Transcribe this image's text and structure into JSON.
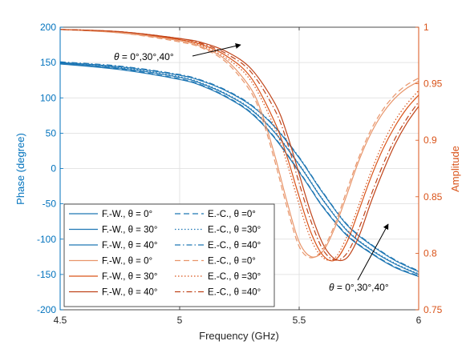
{
  "chart_data": {
    "type": "line",
    "xlabel": "Frequency (GHz)",
    "ylabel_left": "Phase (degree)",
    "ylabel_right": "Amplitude",
    "xlim": [
      4.5,
      6
    ],
    "ylim_left": [
      -200,
      200
    ],
    "ylim_right": [
      0.75,
      1
    ],
    "x_ticks": [
      "4.5",
      "5",
      "5.5",
      "6"
    ],
    "y_left_ticks": [
      "200",
      "150",
      "100",
      "50",
      "0",
      "-50",
      "-100",
      "-150",
      "-200"
    ],
    "y_right_ticks": [
      "1",
      "0.95",
      "0.9",
      "0.85",
      "0.8",
      "0.75"
    ],
    "grid": true,
    "legend_position": "bottom-left",
    "colors": {
      "phase": "#1f77b4",
      "amp_light": "#e8956a",
      "amp_mid": "#d95319",
      "amp_dark": "#c0441a",
      "phase_axis": "#0072bd",
      "amp_axis": "#d95319"
    },
    "annotations": [
      {
        "theta": "θ",
        "text": " = 0°,30°,40°",
        "near": "top-left arrow"
      },
      {
        "theta": "θ",
        "text": " = 0°,30°,40°",
        "near": "bottom-right arrow"
      }
    ],
    "legend": [
      {
        "left": "F.-W., θ = 0°",
        "right": "E.-C., θ =0°"
      },
      {
        "left": "F.-W., θ = 30°",
        "right": "E.-C., θ =30°"
      },
      {
        "left": "F.-W., θ = 40°",
        "right": "E.-C., θ =40°"
      },
      {
        "left": "F.-W., θ = 0°",
        "right": "E.-C., θ =0°"
      },
      {
        "left": "F.-W., θ = 30°",
        "right": "E.-C., θ =30°"
      },
      {
        "left": "F.-W., θ = 40°",
        "right": "E.-C., θ =40°"
      }
    ],
    "series": [
      {
        "axis": "left",
        "method": "F.-W.",
        "theta": 0,
        "style": "solid",
        "color": "phase",
        "x": [
          4.5,
          4.75,
          5.0,
          5.1,
          5.2,
          5.3,
          5.4,
          5.5,
          5.55,
          5.6,
          5.7,
          5.8,
          5.9,
          6.0
        ],
        "y": [
          148,
          140,
          126,
          116,
          100,
          78,
          42,
          -5,
          -30,
          -55,
          -95,
          -120,
          -140,
          -153
        ]
      },
      {
        "axis": "left",
        "method": "F.-W.",
        "theta": 30,
        "style": "solid",
        "color": "phase",
        "x": [
          4.5,
          4.75,
          5.0,
          5.1,
          5.2,
          5.3,
          5.4,
          5.5,
          5.55,
          5.6,
          5.7,
          5.8,
          5.9,
          6.0
        ],
        "y": [
          149,
          142,
          129,
          119,
          104,
          83,
          50,
          5,
          -20,
          -45,
          -88,
          -115,
          -135,
          -150
        ]
      },
      {
        "axis": "left",
        "method": "F.-W.",
        "theta": 40,
        "style": "solid",
        "color": "phase",
        "x": [
          4.5,
          4.75,
          5.0,
          5.1,
          5.2,
          5.3,
          5.4,
          5.5,
          5.55,
          5.6,
          5.7,
          5.8,
          5.9,
          6.0
        ],
        "y": [
          150,
          144,
          132,
          123,
          109,
          89,
          58,
          15,
          -10,
          -35,
          -80,
          -108,
          -130,
          -146
        ]
      },
      {
        "axis": "left",
        "method": "E.-C.",
        "theta": 0,
        "style": "dashed",
        "color": "phase",
        "x": [
          4.5,
          4.75,
          5.0,
          5.1,
          5.2,
          5.3,
          5.4,
          5.5,
          5.55,
          5.6,
          5.7,
          5.8,
          5.9,
          6.0
        ],
        "y": [
          149,
          141,
          127,
          117,
          101,
          79,
          43,
          -4,
          -29,
          -54,
          -94,
          -119,
          -139,
          -152
        ]
      },
      {
        "axis": "left",
        "method": "E.-C.",
        "theta": 30,
        "style": "dotted",
        "color": "phase",
        "x": [
          4.5,
          4.75,
          5.0,
          5.1,
          5.2,
          5.3,
          5.4,
          5.5,
          5.55,
          5.6,
          5.7,
          5.8,
          5.9,
          6.0
        ],
        "y": [
          150,
          143,
          130,
          120,
          105,
          84,
          51,
          6,
          -19,
          -44,
          -87,
          -114,
          -134,
          -149
        ]
      },
      {
        "axis": "left",
        "method": "E.-C.",
        "theta": 40,
        "style": "dashdot",
        "color": "phase",
        "x": [
          4.5,
          4.75,
          5.0,
          5.1,
          5.2,
          5.3,
          5.4,
          5.5,
          5.55,
          5.6,
          5.7,
          5.8,
          5.9,
          6.0
        ],
        "y": [
          151,
          145,
          133,
          124,
          110,
          90,
          59,
          16,
          -9,
          -34,
          -79,
          -107,
          -129,
          -145
        ]
      },
      {
        "axis": "right",
        "method": "F.-W.",
        "theta": 0,
        "style": "solid",
        "color": "amp_light",
        "x": [
          4.5,
          4.75,
          5.0,
          5.1,
          5.2,
          5.3,
          5.35,
          5.4,
          5.45,
          5.5,
          5.55,
          5.6,
          5.65,
          5.7,
          5.75,
          5.8,
          5.85,
          5.9,
          5.95,
          6.0
        ],
        "y": [
          0.998,
          0.995,
          0.988,
          0.982,
          0.97,
          0.945,
          0.92,
          0.885,
          0.845,
          0.81,
          0.797,
          0.802,
          0.823,
          0.852,
          0.882,
          0.906,
          0.924,
          0.937,
          0.946,
          0.952
        ]
      },
      {
        "axis": "right",
        "method": "F.-W.",
        "theta": 30,
        "style": "solid",
        "color": "amp_mid",
        "x": [
          4.5,
          4.75,
          5.0,
          5.1,
          5.2,
          5.3,
          5.4,
          5.45,
          5.5,
          5.55,
          5.6,
          5.65,
          5.7,
          5.75,
          5.8,
          5.85,
          5.9,
          5.95,
          6.0
        ],
        "y": [
          0.998,
          0.996,
          0.989,
          0.984,
          0.974,
          0.955,
          0.915,
          0.885,
          0.85,
          0.818,
          0.798,
          0.794,
          0.81,
          0.838,
          0.867,
          0.892,
          0.912,
          0.928,
          0.94
        ]
      },
      {
        "axis": "right",
        "method": "F.-W.",
        "theta": 40,
        "style": "solid",
        "color": "amp_dark",
        "x": [
          4.5,
          4.75,
          5.0,
          5.1,
          5.2,
          5.3,
          5.4,
          5.45,
          5.5,
          5.55,
          5.6,
          5.65,
          5.7,
          5.75,
          5.8,
          5.85,
          5.9,
          5.95,
          6.0
        ],
        "y": [
          0.998,
          0.996,
          0.99,
          0.986,
          0.978,
          0.963,
          0.932,
          0.905,
          0.87,
          0.835,
          0.808,
          0.795,
          0.796,
          0.815,
          0.845,
          0.872,
          0.896,
          0.915,
          0.93
        ]
      },
      {
        "axis": "right",
        "method": "E.-C.",
        "theta": 0,
        "style": "dashed",
        "color": "amp_light",
        "x": [
          4.5,
          4.75,
          5.0,
          5.1,
          5.2,
          5.3,
          5.35,
          5.4,
          5.45,
          5.5,
          5.55,
          5.6,
          5.65,
          5.7,
          5.75,
          5.8,
          5.85,
          5.9,
          5.95,
          6.0
        ],
        "y": [
          0.998,
          0.995,
          0.987,
          0.981,
          0.968,
          0.942,
          0.916,
          0.88,
          0.84,
          0.806,
          0.796,
          0.804,
          0.826,
          0.856,
          0.885,
          0.909,
          0.927,
          0.94,
          0.949,
          0.955
        ]
      },
      {
        "axis": "right",
        "method": "E.-C.",
        "theta": 30,
        "style": "dotted",
        "color": "amp_mid",
        "x": [
          4.5,
          4.75,
          5.0,
          5.1,
          5.2,
          5.3,
          5.4,
          5.45,
          5.5,
          5.55,
          5.6,
          5.65,
          5.7,
          5.75,
          5.8,
          5.85,
          5.9,
          5.95,
          6.0
        ],
        "y": [
          0.998,
          0.996,
          0.989,
          0.983,
          0.972,
          0.952,
          0.91,
          0.879,
          0.843,
          0.812,
          0.796,
          0.796,
          0.815,
          0.843,
          0.872,
          0.897,
          0.917,
          0.932,
          0.944
        ]
      },
      {
        "axis": "right",
        "method": "E.-C.",
        "theta": 40,
        "style": "dashdot",
        "color": "amp_dark",
        "x": [
          4.5,
          4.75,
          5.0,
          5.1,
          5.2,
          5.3,
          5.4,
          5.45,
          5.5,
          5.55,
          5.6,
          5.65,
          5.7,
          5.75,
          5.8,
          5.85,
          5.9,
          5.95,
          6.0
        ],
        "y": [
          0.998,
          0.996,
          0.99,
          0.985,
          0.976,
          0.96,
          0.926,
          0.898,
          0.862,
          0.828,
          0.803,
          0.794,
          0.8,
          0.822,
          0.851,
          0.878,
          0.901,
          0.919,
          0.934
        ]
      }
    ]
  }
}
